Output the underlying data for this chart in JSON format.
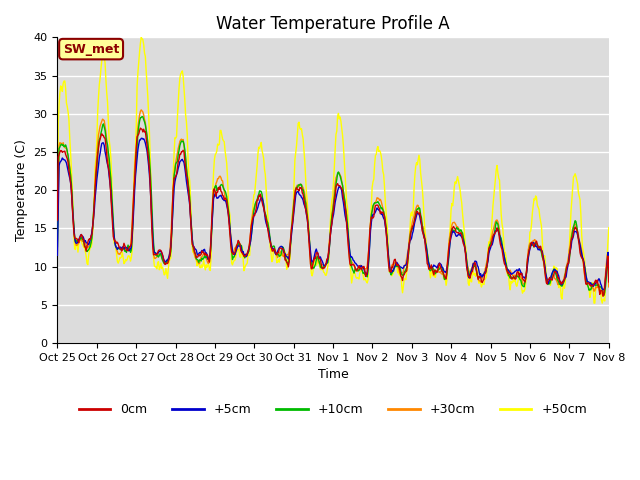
{
  "title": "Water Temperature Profile A",
  "xlabel": "Time",
  "ylabel": "Temperature (C)",
  "ylim": [
    0,
    40
  ],
  "background_color": "#dcdcdc",
  "annotation_text": "SW_met",
  "annotation_bg": "#ffff99",
  "annotation_border": "#8b0000",
  "legend_labels": [
    "0cm",
    "+5cm",
    "+10cm",
    "+30cm",
    "+50cm"
  ],
  "legend_colors": [
    "#cc0000",
    "#0000cc",
    "#00bb00",
    "#ff8800",
    "#ffff00"
  ],
  "xtick_labels": [
    "Oct 25",
    "Oct 26",
    "Oct 27",
    "Oct 28",
    "Oct 29",
    "Oct 30",
    "Oct 31",
    "Nov 1",
    "Nov 2",
    "Nov 3",
    "Nov 4",
    "Nov 5",
    "Nov 5",
    "Nov 6",
    "Nov 7",
    "Nov 8"
  ],
  "grid_color": "#ffffff",
  "title_fontsize": 12,
  "axis_fontsize": 9,
  "tick_fontsize": 8,
  "legend_fontsize": 9,
  "line_width": 1.0
}
